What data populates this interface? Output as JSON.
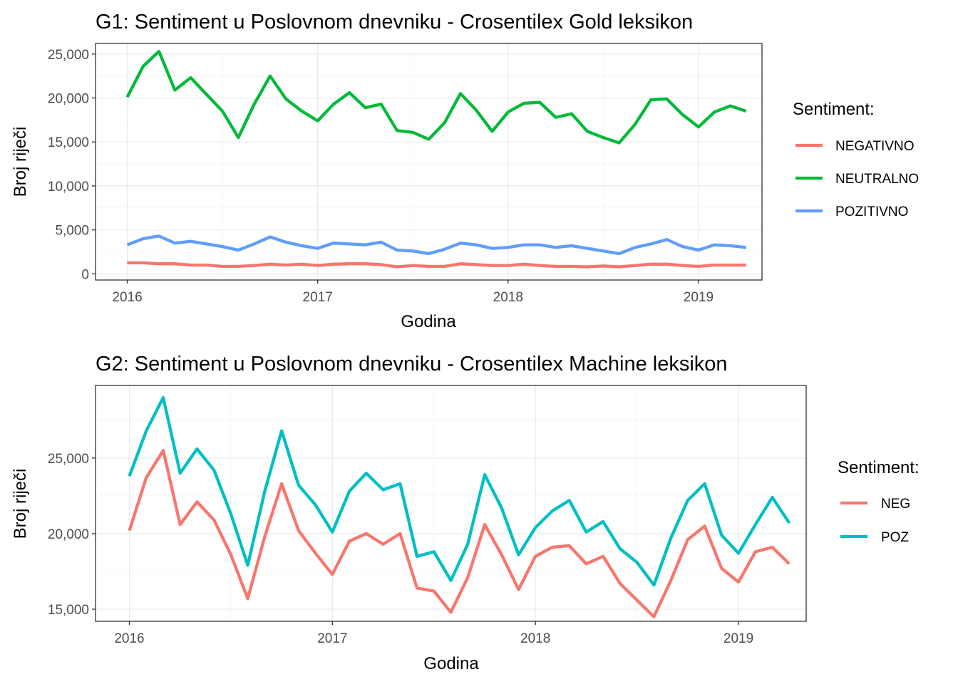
{
  "chart_data": [
    {
      "type": "line",
      "title": "G1: Sentiment u Poslovnom dnevniku - Crosentilex Gold leksikon",
      "xlabel": "Godina",
      "ylabel": "Broj riječi",
      "x_ticks": [
        "2016",
        "2017",
        "2018",
        "2019"
      ],
      "y_ticks": [
        "0",
        "5,000",
        "10,000",
        "15,000",
        "20,000",
        "25,000"
      ],
      "y_tick_values": [
        0,
        5000,
        10000,
        15000,
        20000,
        25000
      ],
      "ylim": [
        -700,
        26200
      ],
      "xlim": [
        "2015-11",
        "2019-05"
      ],
      "grid": true,
      "legend_title": "Sentiment:",
      "legend_position": "right",
      "x": [
        "2016-01",
        "2016-02",
        "2016-03",
        "2016-04",
        "2016-05",
        "2016-06",
        "2016-07",
        "2016-08",
        "2016-09",
        "2016-10",
        "2016-11",
        "2016-12",
        "2017-01",
        "2017-02",
        "2017-03",
        "2017-04",
        "2017-05",
        "2017-06",
        "2017-07",
        "2017-08",
        "2017-09",
        "2017-10",
        "2017-11",
        "2017-12",
        "2018-01",
        "2018-02",
        "2018-03",
        "2018-04",
        "2018-05",
        "2018-06",
        "2018-07",
        "2018-08",
        "2018-09",
        "2018-10",
        "2018-11",
        "2018-12",
        "2019-01",
        "2019-02",
        "2019-03",
        "2019-04"
      ],
      "series": [
        {
          "name": "NEGATIVNO",
          "color": "#F8766D",
          "values": [
            1250,
            1250,
            1150,
            1150,
            1000,
            1000,
            850,
            850,
            950,
            1100,
            1000,
            1100,
            950,
            1100,
            1150,
            1150,
            1050,
            800,
            950,
            850,
            850,
            1150,
            1050,
            950,
            950,
            1100,
            950,
            850,
            850,
            800,
            900,
            800,
            950,
            1100,
            1100,
            950,
            850,
            1000,
            1000,
            1000
          ]
        },
        {
          "name": "NEUTRALNO",
          "color": "#00BA38",
          "values": [
            20100,
            23600,
            25300,
            20900,
            22300,
            20400,
            18500,
            15500,
            19300,
            22500,
            19900,
            18500,
            17400,
            19300,
            20600,
            18900,
            19300,
            16300,
            16100,
            15300,
            17200,
            20500,
            18600,
            16200,
            18400,
            19400,
            19500,
            17800,
            18200,
            16200,
            15500,
            14900,
            17000,
            19800,
            19900,
            18100,
            16700,
            18400,
            19100,
            18500
          ]
        },
        {
          "name": "POZITIVNO",
          "color": "#619CFF",
          "values": [
            3300,
            4000,
            4300,
            3500,
            3700,
            3400,
            3100,
            2700,
            3400,
            4200,
            3600,
            3200,
            2900,
            3500,
            3400,
            3300,
            3600,
            2700,
            2600,
            2300,
            2800,
            3500,
            3300,
            2900,
            3000,
            3300,
            3300,
            3000,
            3200,
            2900,
            2600,
            2300,
            3000,
            3400,
            3900,
            3100,
            2700,
            3300,
            3200,
            3000
          ]
        }
      ]
    },
    {
      "type": "line",
      "title": "G2: Sentiment u Poslovnom dnevniku - Crosentilex Machine leksikon",
      "xlabel": "Godina",
      "ylabel": "Broj riječi",
      "x_ticks": [
        "2016",
        "2017",
        "2018",
        "2019"
      ],
      "y_ticks": [
        "15,000",
        "20,000",
        "25,000"
      ],
      "y_tick_values": [
        15000,
        20000,
        25000
      ],
      "ylim": [
        14200,
        29800
      ],
      "xlim": [
        "2015-11",
        "2019-05"
      ],
      "grid": true,
      "legend_title": "Sentiment:",
      "legend_position": "right",
      "x": [
        "2016-01",
        "2016-02",
        "2016-03",
        "2016-04",
        "2016-05",
        "2016-06",
        "2016-07",
        "2016-08",
        "2016-09",
        "2016-10",
        "2016-11",
        "2016-12",
        "2017-01",
        "2017-02",
        "2017-03",
        "2017-04",
        "2017-05",
        "2017-06",
        "2017-07",
        "2017-08",
        "2017-09",
        "2017-10",
        "2017-11",
        "2017-12",
        "2018-01",
        "2018-02",
        "2018-03",
        "2018-04",
        "2018-05",
        "2018-06",
        "2018-07",
        "2018-08",
        "2018-09",
        "2018-10",
        "2018-11",
        "2018-12",
        "2019-01",
        "2019-02",
        "2019-03",
        "2019-04"
      ],
      "series": [
        {
          "name": "NEG",
          "color": "#F8766D",
          "values": [
            20200,
            23700,
            25500,
            20600,
            22100,
            20900,
            18600,
            15700,
            19800,
            23300,
            20200,
            18700,
            17300,
            19500,
            20000,
            19300,
            20000,
            16400,
            16200,
            14800,
            17100,
            20600,
            18600,
            16300,
            18500,
            19100,
            19200,
            18000,
            18500,
            16700,
            15600,
            14500,
            16900,
            19600,
            20500,
            17700,
            16800,
            18800,
            19100,
            18000
          ]
        },
        {
          "name": "POZ",
          "color": "#00BFC4",
          "values": [
            23800,
            26800,
            29000,
            24000,
            25600,
            24200,
            21300,
            17900,
            22800,
            26800,
            23200,
            21900,
            20100,
            22800,
            24000,
            22900,
            23300,
            18500,
            18800,
            16900,
            19300,
            23900,
            21700,
            18600,
            20400,
            21500,
            22200,
            20100,
            20800,
            19000,
            18100,
            16600,
            19700,
            22200,
            23300,
            19900,
            18700,
            20600,
            22400,
            20700
          ]
        }
      ]
    }
  ]
}
